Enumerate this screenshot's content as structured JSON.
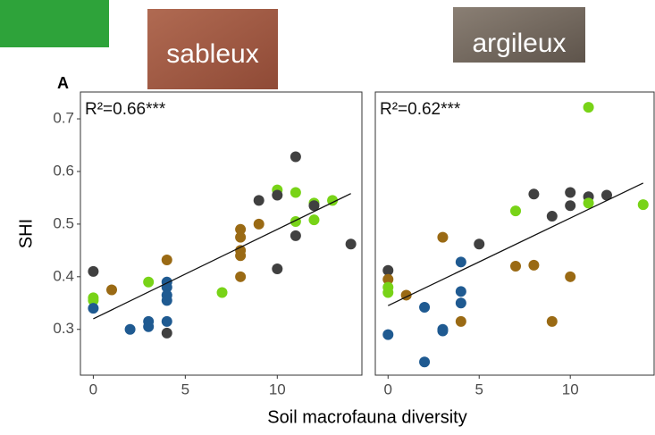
{
  "panel_label": "A",
  "images": [
    {
      "label": "sableux"
    },
    {
      "label": "argileux"
    }
  ],
  "chart_data": [
    {
      "type": "scatter",
      "annotation": "R²=0.66***",
      "ylabel": "SHI",
      "xlabel": "Soil macrofauna diversity",
      "xlim": [
        -0.7,
        14.6
      ],
      "ylim": [
        0.213,
        0.751
      ],
      "xticks": [
        0,
        5,
        10
      ],
      "yticks": [
        0.3,
        0.4,
        0.5,
        0.6,
        0.7
      ],
      "x": [
        0,
        0,
        0,
        0,
        1,
        2,
        3,
        3,
        3,
        4,
        4,
        4,
        4,
        4,
        4,
        4,
        7,
        8,
        8,
        8,
        8,
        8,
        9,
        9,
        10,
        10,
        10,
        11,
        11,
        11,
        11,
        12,
        12,
        12,
        13,
        14
      ],
      "y": [
        0.41,
        0.36,
        0.355,
        0.34,
        0.375,
        0.3,
        0.39,
        0.315,
        0.305,
        0.432,
        0.39,
        0.38,
        0.365,
        0.355,
        0.315,
        0.293,
        0.37,
        0.49,
        0.475,
        0.45,
        0.44,
        0.4,
        0.545,
        0.5,
        0.565,
        0.555,
        0.415,
        0.628,
        0.56,
        0.505,
        0.478,
        0.54,
        0.535,
        0.508,
        0.545,
        0.462
      ],
      "colors": [
        "#404040",
        "#78d317",
        "#78d317",
        "#1f5a91",
        "#9a6a14",
        "#1f5a91",
        "#78d317",
        "#1f5a91",
        "#1f5a91",
        "#9a6a14",
        "#1f5a91",
        "#1f5a91",
        "#1f5a91",
        "#1f5a91",
        "#1f5a91",
        "#404040",
        "#78d317",
        "#9a6a14",
        "#9a6a14",
        "#9a6a14",
        "#9a6a14",
        "#9a6a14",
        "#404040",
        "#9a6a14",
        "#78d317",
        "#404040",
        "#404040",
        "#404040",
        "#78d317",
        "#78d317",
        "#404040",
        "#78d317",
        "#404040",
        "#78d317",
        "#78d317",
        "#404040"
      ],
      "trend_line": {
        "x": [
          0,
          14
        ],
        "y": [
          0.32,
          0.558
        ]
      }
    },
    {
      "type": "scatter",
      "annotation": "R²=0.62***",
      "xlim": [
        -0.7,
        14.6
      ],
      "ylim": [
        0.213,
        0.751
      ],
      "xticks": [
        0,
        5,
        10
      ],
      "x": [
        0,
        0,
        0,
        0,
        0,
        1,
        2,
        2,
        3,
        3,
        3,
        4,
        4,
        4,
        4,
        5,
        7,
        7,
        8,
        8,
        9,
        9,
        10,
        10,
        10,
        11,
        11,
        11,
        12,
        14
      ],
      "y": [
        0.412,
        0.395,
        0.38,
        0.37,
        0.29,
        0.365,
        0.342,
        0.238,
        0.475,
        0.3,
        0.297,
        0.428,
        0.372,
        0.35,
        0.315,
        0.462,
        0.525,
        0.42,
        0.557,
        0.422,
        0.515,
        0.315,
        0.56,
        0.535,
        0.4,
        0.722,
        0.552,
        0.54,
        0.555,
        0.537
      ],
      "colors": [
        "#404040",
        "#9a6a14",
        "#78d317",
        "#78d317",
        "#1f5a91",
        "#9a6a14",
        "#1f5a91",
        "#1f5a91",
        "#9a6a14",
        "#1f5a91",
        "#1f5a91",
        "#1f5a91",
        "#1f5a91",
        "#1f5a91",
        "#9a6a14",
        "#404040",
        "#78d317",
        "#9a6a14",
        "#404040",
        "#9a6a14",
        "#404040",
        "#9a6a14",
        "#404040",
        "#404040",
        "#9a6a14",
        "#78d317",
        "#404040",
        "#78d317",
        "#404040",
        "#78d317"
      ],
      "trend_line": {
        "x": [
          0,
          14
        ],
        "y": [
          0.345,
          0.578
        ]
      }
    }
  ]
}
